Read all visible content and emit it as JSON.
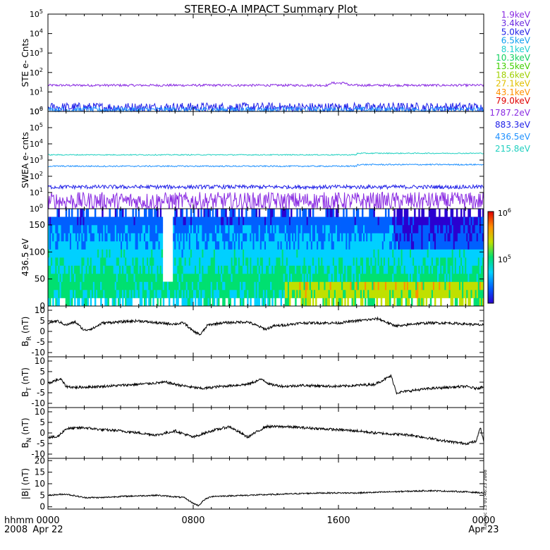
{
  "title": "STEREO-A IMPACT Summary Plot",
  "timestamp": "Tue Dec 13 01:46:23 2008",
  "time_axis": {
    "labels": [
      {
        "t": 0,
        "top": "0000",
        "bottom": "Apr 22"
      },
      {
        "t": 8,
        "top": "0800",
        "bottom": ""
      },
      {
        "t": 16,
        "top": "1600",
        "bottom": ""
      },
      {
        "t": 24,
        "top": "0000",
        "bottom": "Apr 23"
      }
    ],
    "left_top": "hhmm",
    "left_bottom": "2008",
    "range_hours": [
      0,
      24
    ]
  },
  "colors": {
    "purple": "#8a2be2",
    "blue": "#1f1fe6",
    "lightblue": "#1e90ff",
    "cyan": "#20d0c0",
    "colorbar": [
      "#2a00d0",
      "#0060ff",
      "#00d0ff",
      "#00e070",
      "#c0e000",
      "#ff9000",
      "#e00000"
    ]
  },
  "chart_data": [
    {
      "type": "line",
      "id": "ste",
      "ylabel": "STE e- Cnts",
      "yscale": "log",
      "yticks": [
        "10^0",
        "10^1",
        "10^2",
        "10^3",
        "10^4",
        "10^5"
      ],
      "ylim": [
        1,
        100000
      ],
      "legend": [
        "1.9keV",
        "3.4keV",
        "5.0keV",
        "6.5keV",
        "8.1keV",
        "10.3keV",
        "13.5keV",
        "18.6keV",
        "27.1keV",
        "43.1keV",
        "79.0keV"
      ],
      "legend_colors": [
        "#8a2be2",
        "#6a2be0",
        "#2020e8",
        "#10a0f0",
        "#20d0d0",
        "#10d060",
        "#40d000",
        "#a0d000",
        "#e0c000",
        "#ff9000",
        "#e00000"
      ],
      "series": [
        {
          "name": "1.9keV",
          "level": 22,
          "noise": 0.06,
          "color": "#8a2be2"
        },
        {
          "name": "3.4keV",
          "level": 1.6,
          "noise": 0.25,
          "color": "#2020e8"
        },
        {
          "name": "5.0keV",
          "level": 1.2,
          "noise": 0.15,
          "color": "#1e90ff"
        }
      ]
    },
    {
      "type": "line",
      "id": "swea",
      "ylabel": "SWEA e- cnts",
      "yscale": "log",
      "yticks": [
        "10^0",
        "10^1",
        "10^2",
        "10^3",
        "10^4",
        "10^5",
        "10^6"
      ],
      "ylim": [
        1,
        1000000
      ],
      "legend": [
        "1787.2eV",
        "883.3eV",
        "436.5eV",
        "215.8eV"
      ],
      "legend_colors": [
        "#8a2be2",
        "#2020e8",
        "#1e90ff",
        "#20d0c0"
      ],
      "series": [
        {
          "name": "1787.2eV",
          "level": 3,
          "noise": 0.55,
          "color": "#8a2be2"
        },
        {
          "name": "883.3eV",
          "level": 22,
          "noise": 0.12,
          "color": "#2020e8"
        },
        {
          "name": "436.5eV",
          "level": 420,
          "noise": 0.04,
          "color": "#1e90ff"
        },
        {
          "name": "215.8eV",
          "level": 2100,
          "noise": 0.03,
          "color": "#20d0c0"
        }
      ]
    },
    {
      "type": "heatmap",
      "id": "pad",
      "ylabel": "436.5 eV",
      "yticks": [
        "0",
        "50",
        "100",
        "150"
      ],
      "ylim": [
        0,
        180
      ],
      "colorbar_ticks": [
        "10^6",
        "10^5"
      ]
    },
    {
      "type": "line",
      "id": "br",
      "ylabel": "B_R (nT)",
      "yticks": [
        "-10",
        "-5",
        "0",
        "5",
        "10"
      ],
      "ylim": [
        -12,
        12
      ],
      "knots": [
        [
          0,
          4
        ],
        [
          0.5,
          5
        ],
        [
          1,
          3
        ],
        [
          1.5,
          4.5
        ],
        [
          2,
          0.5
        ],
        [
          2.5,
          1.5
        ],
        [
          3,
          4
        ],
        [
          5,
          5
        ],
        [
          6,
          4
        ],
        [
          7,
          3.5
        ],
        [
          7.5,
          4
        ],
        [
          8,
          0
        ],
        [
          8.4,
          -1.5
        ],
        [
          8.8,
          3
        ],
        [
          9.5,
          4
        ],
        [
          11,
          4.5
        ],
        [
          12,
          1
        ],
        [
          12.4,
          2.5
        ],
        [
          13,
          3
        ],
        [
          14,
          4
        ],
        [
          16,
          4
        ],
        [
          17,
          5
        ],
        [
          18.2,
          6
        ],
        [
          19,
          3
        ],
        [
          19.5,
          2.5
        ],
        [
          20,
          3.5
        ],
        [
          21,
          4
        ],
        [
          22,
          4
        ],
        [
          23,
          3.5
        ],
        [
          24,
          3
        ]
      ]
    },
    {
      "type": "line",
      "id": "bt",
      "ylabel": "B_T (nT)",
      "yticks": [
        "-10",
        "-5",
        "0",
        "5",
        "10"
      ],
      "ylim": [
        -12,
        12
      ],
      "knots": [
        [
          0,
          -1
        ],
        [
          0.3,
          0.5
        ],
        [
          0.7,
          1.5
        ],
        [
          1,
          -2
        ],
        [
          1.5,
          -2.5
        ],
        [
          3,
          -2
        ],
        [
          5,
          -1
        ],
        [
          6.5,
          0
        ],
        [
          7,
          -1
        ],
        [
          8,
          -2.5
        ],
        [
          8.5,
          -3
        ],
        [
          9.5,
          -2
        ],
        [
          11,
          -1
        ],
        [
          11.8,
          1.5
        ],
        [
          12.2,
          -1
        ],
        [
          13,
          -2
        ],
        [
          14,
          -1.5
        ],
        [
          16,
          -2
        ],
        [
          18,
          -1
        ],
        [
          18.9,
          3
        ],
        [
          19.2,
          -5
        ],
        [
          20,
          -4
        ],
        [
          21,
          -3
        ],
        [
          22,
          -2.5
        ],
        [
          23,
          -2
        ],
        [
          23.6,
          -3
        ],
        [
          24,
          -2
        ]
      ]
    },
    {
      "type": "line",
      "id": "bn",
      "ylabel": "B_N (nT)",
      "yticks": [
        "-10",
        "-5",
        "0",
        "5",
        "10"
      ],
      "ylim": [
        -12,
        12
      ],
      "knots": [
        [
          0,
          -2
        ],
        [
          0.5,
          -2
        ],
        [
          1,
          2
        ],
        [
          2,
          2.5
        ],
        [
          3,
          1.5
        ],
        [
          4,
          1
        ],
        [
          5,
          0
        ],
        [
          6,
          -1
        ],
        [
          7,
          1
        ],
        [
          8,
          -2
        ],
        [
          9,
          1
        ],
        [
          10,
          3
        ],
        [
          11,
          -2
        ],
        [
          12,
          3
        ],
        [
          13,
          3
        ],
        [
          15,
          2
        ],
        [
          17,
          1
        ],
        [
          18,
          0
        ],
        [
          20,
          -1
        ],
        [
          21,
          -2.5
        ],
        [
          22,
          -4
        ],
        [
          23,
          -5
        ],
        [
          23.6,
          -4
        ],
        [
          23.8,
          3
        ],
        [
          24,
          -4
        ]
      ]
    },
    {
      "type": "line",
      "id": "bmag",
      "ylabel": "|B| (nT)",
      "yticks": [
        "0",
        "5",
        "10",
        "15",
        "20"
      ],
      "ylim": [
        -1,
        21
      ],
      "knots": [
        [
          0,
          5
        ],
        [
          1,
          5.5
        ],
        [
          2,
          4
        ],
        [
          3,
          4
        ],
        [
          4,
          4.5
        ],
        [
          6,
          5
        ],
        [
          7.5,
          4
        ],
        [
          8,
          1.5
        ],
        [
          8.3,
          0.5
        ],
        [
          8.6,
          3
        ],
        [
          9,
          4.5
        ],
        [
          11,
          5
        ],
        [
          13,
          5.5
        ],
        [
          15,
          6
        ],
        [
          17,
          6
        ],
        [
          19,
          6.5
        ],
        [
          21,
          7
        ],
        [
          23,
          6.5
        ],
        [
          24,
          6
        ]
      ]
    }
  ]
}
